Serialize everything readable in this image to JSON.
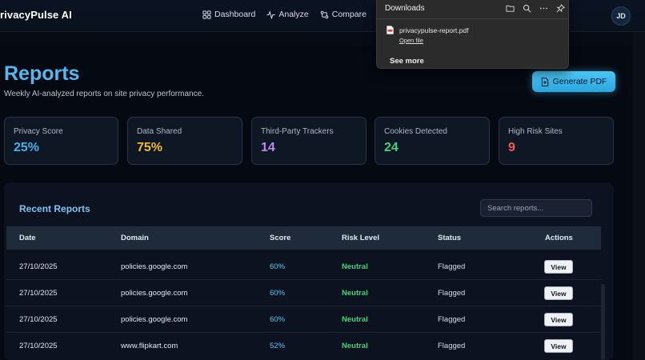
{
  "app": {
    "brand": "rivacyPulse AI",
    "avatar_initials": "JD"
  },
  "nav": [
    {
      "label": "Dashboard",
      "icon": "grid-icon"
    },
    {
      "label": "Analyze",
      "icon": "activity-icon"
    },
    {
      "label": "Compare",
      "icon": "compare-icon"
    }
  ],
  "downloads": {
    "title": "Downloads",
    "icons": [
      "folder-icon",
      "search-icon",
      "more-icon",
      "pin-icon"
    ],
    "file_name": "privacypulse-report.pdf",
    "open_label": "Open file",
    "see_more": "See more"
  },
  "page": {
    "title": "Reports",
    "subtitle": "Weekly AI-analyzed reports on site privacy performance.",
    "generate_label": "Generate PDF"
  },
  "stats": [
    {
      "label": "Privacy Score",
      "value": "25%",
      "color": "#3cb4ec"
    },
    {
      "label": "Data Shared",
      "value": "75%",
      "color": "#f4b92c"
    },
    {
      "label": "Third-Party Trackers",
      "value": "14",
      "color": "#b98af2"
    },
    {
      "label": "Cookies Detected",
      "value": "24",
      "color": "#3fd27e"
    },
    {
      "label": "High Risk Sites",
      "value": "9",
      "color": "#f05a5a"
    }
  ],
  "reports": {
    "title": "Recent Reports",
    "search_placeholder": "Search reports...",
    "columns": [
      "Date",
      "Domain",
      "Score",
      "Risk Level",
      "Status",
      "Actions"
    ],
    "rows": [
      {
        "date": "27/10/2025",
        "domain": "policies.google.com",
        "score": "60%",
        "risk": "Neutral",
        "status": "Flagged",
        "action": "View"
      },
      {
        "date": "27/10/2025",
        "domain": "policies.google.com",
        "score": "60%",
        "risk": "Neutral",
        "status": "Flagged",
        "action": "View"
      },
      {
        "date": "27/10/2025",
        "domain": "policies.google.com",
        "score": "60%",
        "risk": "Neutral",
        "status": "Flagged",
        "action": "View"
      },
      {
        "date": "27/10/2025",
        "domain": "www.flipkart.com",
        "score": "52%",
        "risk": "Neutral",
        "status": "Flagged",
        "action": "View"
      }
    ]
  }
}
